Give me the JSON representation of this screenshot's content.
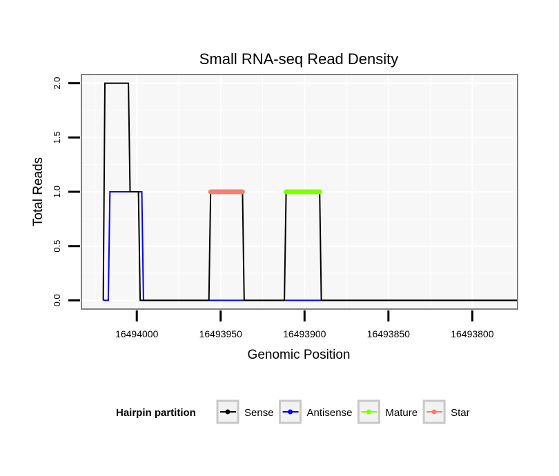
{
  "chart_data": {
    "type": "line",
    "title": "Small RNA-seq Read Density",
    "xlabel": "Genomic Position",
    "ylabel": "Total Reads",
    "x_reversed": true,
    "xlim": [
      16494033,
      16493773
    ],
    "ylim": [
      -0.08,
      2.08
    ],
    "x_ticks": [
      16494000,
      16493950,
      16493900,
      16493850,
      16493800
    ],
    "x_tick_labels": [
      "16494000",
      "16493950",
      "16493900",
      "16493850",
      "16493800"
    ],
    "y_ticks": [
      0,
      0.5,
      1,
      1.5,
      2
    ],
    "y_tick_labels": [
      "0.0",
      "0.5",
      "1.0",
      "1.5",
      "2.0"
    ],
    "grid": true,
    "legend_title": "Hairpin partition",
    "legend_position": "bottom",
    "series": [
      {
        "name": "Sense",
        "color": "#000000",
        "x": [
          16494020,
          16494019,
          16494005,
          16494004,
          16493999,
          16493998,
          16493957,
          16493956,
          16493937,
          16493936,
          16493912,
          16493911,
          16493891,
          16493890,
          16493773
        ],
        "y": [
          0,
          2,
          2,
          1,
          1,
          0,
          0,
          1,
          1,
          0,
          0,
          1,
          1,
          0,
          0
        ]
      },
      {
        "name": "Antisense",
        "color": "#0000ff",
        "x": [
          16494020,
          16494017,
          16494016,
          16493997,
          16493996,
          16493773
        ],
        "y": [
          0,
          0,
          1,
          1,
          0,
          0
        ]
      },
      {
        "name": "Mature",
        "color": "#7fff00",
        "x": [
          16493911,
          16493891
        ],
        "y": [
          1,
          1
        ]
      },
      {
        "name": "Star",
        "color": "#f08070",
        "x": [
          16493956,
          16493937
        ],
        "y": [
          1,
          1
        ]
      }
    ]
  }
}
